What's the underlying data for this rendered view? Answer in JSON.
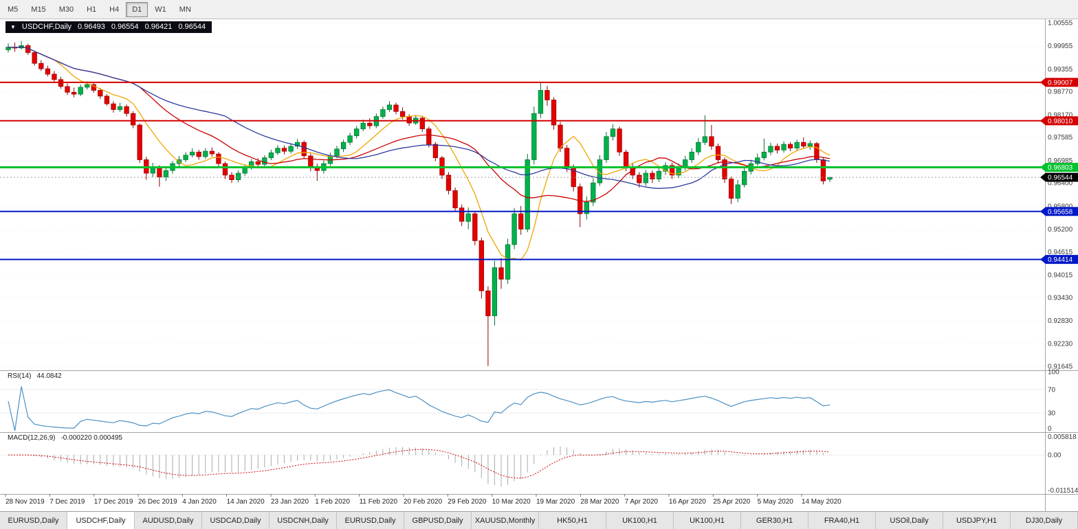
{
  "toolbar": {
    "timeframes": [
      "M5",
      "M15",
      "M30",
      "H1",
      "H4",
      "D1",
      "W1",
      "MN"
    ],
    "active_timeframe": "D1"
  },
  "chart": {
    "symbol_label": "USDCHF,Daily",
    "ohlc": {
      "open": "0.96493",
      "high": "0.96554",
      "low": "0.96421",
      "close": "0.96544"
    },
    "price_axis_labels": [
      "1.00555",
      "0.99955",
      "0.99355",
      "0.98770",
      "0.98170",
      "0.97585",
      "0.96985",
      "0.96400",
      "0.95800",
      "0.95200",
      "0.94615",
      "0.94015",
      "0.93430",
      "0.92830",
      "0.92230",
      "0.91645"
    ],
    "hlines": [
      {
        "value": 0.99007,
        "label": "0.99007",
        "color": "#d40000",
        "width": 2
      },
      {
        "value": 0.9801,
        "label": "0.98010",
        "color": "#d40000",
        "width": 2
      },
      {
        "value": 0.96803,
        "label": "0.96803",
        "color": "#00c22d",
        "width": 3
      },
      {
        "value": 0.95658,
        "label": "0.95658",
        "color": "#0018c8",
        "width": 2
      },
      {
        "value": 0.94414,
        "label": "0.94414",
        "color": "#0018c8",
        "width": 2
      }
    ],
    "current_price": {
      "value": 0.96544,
      "label": "0.96544",
      "bg": "#000000"
    },
    "date_labels": [
      "28 Nov 2019",
      "7 Dec 2019",
      "17 Dec 2019",
      "26 Dec 2019",
      "4 Jan 2020",
      "14 Jan 2020",
      "23 Jan 2020",
      "1 Feb 2020",
      "11 Feb 2020",
      "20 Feb 2020",
      "29 Feb 2020",
      "10 Mar 2020",
      "19 Mar 2020",
      "28 Mar 2020",
      "7 Apr 2020",
      "16 Apr 2020",
      "25 Apr 2020",
      "5 May 2020",
      "14 May 2020"
    ]
  },
  "chart_data": {
    "type": "candlestick",
    "symbol": "USDCHF",
    "timeframe": "Daily",
    "ylim": [
      0.91645,
      1.00555
    ],
    "up_color": "#00b14c",
    "down_color": "#e60000",
    "up_border": "#006e2e",
    "down_border": "#8e0000",
    "moving_averages": [
      {
        "period": 8,
        "color": "#efa500"
      },
      {
        "period": 21,
        "color": "#c80000"
      },
      {
        "period": 34,
        "color": "#2b3a9e"
      }
    ],
    "candles": [
      [
        0.9985,
        1.0002,
        0.9978,
        0.9992
      ],
      [
        0.9992,
        1.0004,
        0.998,
        0.999
      ],
      [
        0.999,
        1.0008,
        0.9986,
        0.9996
      ],
      [
        0.9996,
        1.0001,
        0.9972,
        0.9978
      ],
      [
        0.9978,
        0.9982,
        0.9944,
        0.995
      ],
      [
        0.995,
        0.9958,
        0.993,
        0.9936
      ],
      [
        0.9936,
        0.9944,
        0.9916,
        0.9922
      ],
      [
        0.9922,
        0.993,
        0.99,
        0.9908
      ],
      [
        0.9908,
        0.9915,
        0.9884,
        0.989
      ],
      [
        0.989,
        0.9898,
        0.9868,
        0.9875
      ],
      [
        0.9875,
        0.9887,
        0.9862,
        0.987
      ],
      [
        0.987,
        0.9895,
        0.9865,
        0.9888
      ],
      [
        0.9888,
        0.9903,
        0.9882,
        0.9895
      ],
      [
        0.9895,
        0.99,
        0.9874,
        0.988
      ],
      [
        0.988,
        0.9886,
        0.9858,
        0.9865
      ],
      [
        0.9865,
        0.987,
        0.984,
        0.9845
      ],
      [
        0.9845,
        0.9852,
        0.9822,
        0.983
      ],
      [
        0.983,
        0.9848,
        0.9824,
        0.9838
      ],
      [
        0.9838,
        0.9843,
        0.9812,
        0.982
      ],
      [
        0.982,
        0.9826,
        0.9782,
        0.979
      ],
      [
        0.979,
        0.9794,
        0.9692,
        0.97
      ],
      [
        0.97,
        0.9708,
        0.9648,
        0.9665
      ],
      [
        0.9665,
        0.9692,
        0.9655,
        0.968
      ],
      [
        0.968,
        0.9686,
        0.963,
        0.9655
      ],
      [
        0.9655,
        0.968,
        0.9645,
        0.9672
      ],
      [
        0.9672,
        0.9697,
        0.9664,
        0.969
      ],
      [
        0.969,
        0.971,
        0.9682,
        0.97
      ],
      [
        0.97,
        0.972,
        0.9694,
        0.9712
      ],
      [
        0.9712,
        0.973,
        0.9706,
        0.972
      ],
      [
        0.972,
        0.9726,
        0.97,
        0.9708
      ],
      [
        0.9708,
        0.973,
        0.9702,
        0.9722
      ],
      [
        0.9722,
        0.9732,
        0.9708,
        0.9715
      ],
      [
        0.9715,
        0.972,
        0.9682,
        0.969
      ],
      [
        0.969,
        0.9695,
        0.965,
        0.966
      ],
      [
        0.966,
        0.9668,
        0.964,
        0.9648
      ],
      [
        0.9648,
        0.9672,
        0.9641,
        0.9665
      ],
      [
        0.9665,
        0.9688,
        0.9658,
        0.968
      ],
      [
        0.968,
        0.9702,
        0.9674,
        0.9695
      ],
      [
        0.9695,
        0.9704,
        0.968,
        0.9688
      ],
      [
        0.9688,
        0.9712,
        0.9682,
        0.9705
      ],
      [
        0.9705,
        0.9726,
        0.9699,
        0.9718
      ],
      [
        0.9718,
        0.9738,
        0.9712,
        0.973
      ],
      [
        0.973,
        0.9737,
        0.9714,
        0.9722
      ],
      [
        0.9722,
        0.9743,
        0.9716,
        0.9735
      ],
      [
        0.9735,
        0.9754,
        0.9728,
        0.9745
      ],
      [
        0.9745,
        0.975,
        0.9702,
        0.971
      ],
      [
        0.971,
        0.9716,
        0.967,
        0.968
      ],
      [
        0.968,
        0.969,
        0.9645,
        0.9672
      ],
      [
        0.9672,
        0.9698,
        0.9664,
        0.969
      ],
      [
        0.969,
        0.9718,
        0.9684,
        0.971
      ],
      [
        0.971,
        0.9736,
        0.9704,
        0.9728
      ],
      [
        0.9728,
        0.9752,
        0.972,
        0.9745
      ],
      [
        0.9745,
        0.977,
        0.9738,
        0.9762
      ],
      [
        0.9762,
        0.9788,
        0.9755,
        0.978
      ],
      [
        0.978,
        0.9804,
        0.9774,
        0.9795
      ],
      [
        0.9795,
        0.9808,
        0.978,
        0.9788
      ],
      [
        0.9788,
        0.982,
        0.9782,
        0.9812
      ],
      [
        0.9812,
        0.9838,
        0.9806,
        0.983
      ],
      [
        0.983,
        0.9852,
        0.9824,
        0.9842
      ],
      [
        0.9842,
        0.9848,
        0.9818,
        0.9825
      ],
      [
        0.9825,
        0.9836,
        0.9804,
        0.9812
      ],
      [
        0.9812,
        0.9818,
        0.9788,
        0.9795
      ],
      [
        0.9795,
        0.9816,
        0.979,
        0.9808
      ],
      [
        0.9808,
        0.9812,
        0.9772,
        0.978
      ],
      [
        0.978,
        0.9786,
        0.9732,
        0.974
      ],
      [
        0.974,
        0.9746,
        0.9696,
        0.9705
      ],
      [
        0.9705,
        0.971,
        0.965,
        0.966
      ],
      [
        0.966,
        0.9668,
        0.961,
        0.962
      ],
      [
        0.962,
        0.9628,
        0.9565,
        0.9575
      ],
      [
        0.9575,
        0.9584,
        0.9528,
        0.954
      ],
      [
        0.954,
        0.9576,
        0.952,
        0.956
      ],
      [
        0.956,
        0.9566,
        0.9478,
        0.949
      ],
      [
        0.949,
        0.9498,
        0.934,
        0.936
      ],
      [
        0.936,
        0.9372,
        0.9165,
        0.9295
      ],
      [
        0.9295,
        0.9438,
        0.927,
        0.942
      ],
      [
        0.942,
        0.9445,
        0.9365,
        0.939
      ],
      [
        0.939,
        0.9495,
        0.9378,
        0.948
      ],
      [
        0.948,
        0.9575,
        0.9468,
        0.956
      ],
      [
        0.956,
        0.958,
        0.9505,
        0.952
      ],
      [
        0.952,
        0.9715,
        0.9512,
        0.97
      ],
      [
        0.97,
        0.9838,
        0.9688,
        0.982
      ],
      [
        0.982,
        0.9901,
        0.9808,
        0.988
      ],
      [
        0.988,
        0.9892,
        0.984,
        0.9855
      ],
      [
        0.9855,
        0.9862,
        0.9778,
        0.979
      ],
      [
        0.979,
        0.9798,
        0.972,
        0.973
      ],
      [
        0.973,
        0.9738,
        0.9668,
        0.968
      ],
      [
        0.968,
        0.9688,
        0.9618,
        0.963
      ],
      [
        0.963,
        0.9638,
        0.9525,
        0.956
      ],
      [
        0.956,
        0.9605,
        0.9545,
        0.959
      ],
      [
        0.959,
        0.9652,
        0.958,
        0.964
      ],
      [
        0.964,
        0.9712,
        0.9632,
        0.97
      ],
      [
        0.97,
        0.9772,
        0.9692,
        0.976
      ],
      [
        0.976,
        0.9792,
        0.975,
        0.978
      ],
      [
        0.978,
        0.9786,
        0.971,
        0.972
      ],
      [
        0.972,
        0.9726,
        0.967,
        0.968
      ],
      [
        0.968,
        0.969,
        0.965,
        0.966
      ],
      [
        0.966,
        0.9668,
        0.9628,
        0.964
      ],
      [
        0.964,
        0.9674,
        0.9632,
        0.9665
      ],
      [
        0.9665,
        0.9672,
        0.964,
        0.965
      ],
      [
        0.965,
        0.968,
        0.9642,
        0.967
      ],
      [
        0.967,
        0.9694,
        0.966,
        0.9685
      ],
      [
        0.9685,
        0.9692,
        0.965,
        0.966
      ],
      [
        0.966,
        0.969,
        0.9652,
        0.968
      ],
      [
        0.968,
        0.971,
        0.9672,
        0.97
      ],
      [
        0.97,
        0.973,
        0.9692,
        0.972
      ],
      [
        0.972,
        0.9756,
        0.9712,
        0.9745
      ],
      [
        0.9745,
        0.9815,
        0.9738,
        0.976
      ],
      [
        0.976,
        0.979,
        0.9726,
        0.9735
      ],
      [
        0.9735,
        0.9742,
        0.969,
        0.97
      ],
      [
        0.97,
        0.9706,
        0.964,
        0.965
      ],
      [
        0.965,
        0.9656,
        0.9585,
        0.96
      ],
      [
        0.96,
        0.9648,
        0.959,
        0.9635
      ],
      [
        0.9635,
        0.968,
        0.9628,
        0.967
      ],
      [
        0.967,
        0.97,
        0.9662,
        0.969
      ],
      [
        0.969,
        0.9716,
        0.9684,
        0.9705
      ],
      [
        0.9705,
        0.9755,
        0.9698,
        0.972
      ],
      [
        0.972,
        0.9744,
        0.9712,
        0.9735
      ],
      [
        0.9735,
        0.9742,
        0.9716,
        0.9725
      ],
      [
        0.9725,
        0.9748,
        0.9718,
        0.974
      ],
      [
        0.974,
        0.9746,
        0.9722,
        0.973
      ],
      [
        0.973,
        0.9752,
        0.9724,
        0.9745
      ],
      [
        0.9745,
        0.9758,
        0.9728,
        0.9735
      ],
      [
        0.9735,
        0.975,
        0.9726,
        0.9742
      ],
      [
        0.9742,
        0.9746,
        0.9692,
        0.97
      ],
      [
        0.97,
        0.9706,
        0.9636,
        0.9645
      ],
      [
        0.96493,
        0.96554,
        0.96421,
        0.96544
      ]
    ]
  },
  "rsi": {
    "title": "RSI(14)",
    "value": "44.0842",
    "levels": [
      "100",
      "70",
      "30",
      "0"
    ],
    "color": "#4a90c4"
  },
  "macd": {
    "title": "MACD(12,26,9)",
    "values": "-0.000220 0.000495",
    "axis_labels": [
      "0.005818",
      "0.00",
      "-0.011514"
    ],
    "range": [
      -0.011514,
      0.005818
    ],
    "signal_color": "#cc0000",
    "histogram_color": "#a9a9a9"
  },
  "tabs": [
    "EURUSD,Daily",
    "USDCHF,Daily",
    "AUDUSD,Daily",
    "USDCAD,Daily",
    "USDCNH,Daily",
    "EURUSD,Daily",
    "GBPUSD,Daily",
    "XAUUSD,Monthly",
    "HK50,H1",
    "UK100,H1",
    "UK100,H1",
    "GER30,H1",
    "FRA40,H1",
    "USOil,Daily",
    "USDJPY,H1",
    "DJ30,Daily"
  ],
  "active_tab_index": 1
}
